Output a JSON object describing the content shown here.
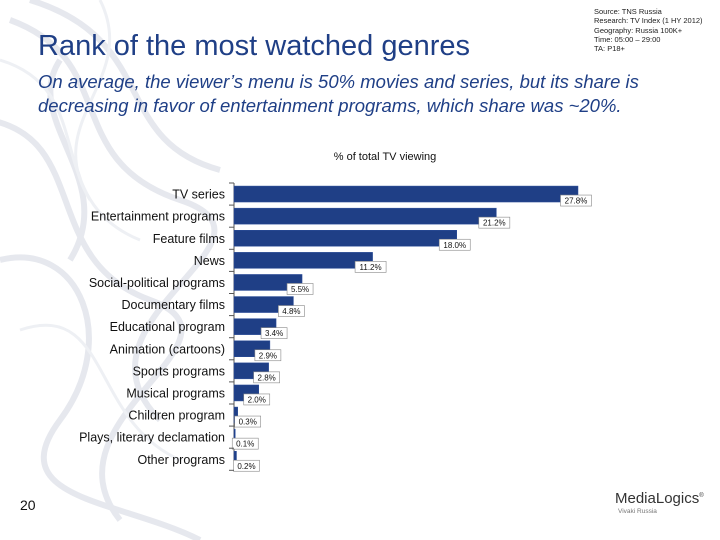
{
  "title": "Rank of the most watched genres",
  "subtitle": "On average, the viewer’s menu is 50% movies and series, but its share is decreasing in favor of entertainment programs, which share was ~20%.",
  "source_lines": [
    "Source: TNS Russia",
    "Research: TV Index (1 HY 2012)",
    "Geography: Russia 100K+",
    "Time: 05:00 – 29:00",
    "TA: P18+"
  ],
  "page_number": "20",
  "logo": {
    "name": "MediaLogics",
    "tm": "®",
    "tagline": "Vivaki Russia"
  },
  "colors": {
    "title": "#1f3f86",
    "bar": "#1f3f86",
    "bar_edge": "#2d4f9b"
  },
  "chart_data": {
    "type": "bar",
    "orientation": "horizontal",
    "title": "% of total TV viewing",
    "xlabel": "",
    "ylabel": "",
    "xlim": [
      0,
      27.8
    ],
    "grid": false,
    "legend": "none",
    "categories": [
      "TV series",
      "Entertainment programs",
      "Feature films",
      "News",
      "Social-political programs",
      "Documentary films",
      "Educational program",
      "Animation (cartoons)",
      "Sports programs",
      "Musical programs",
      "Children program",
      "Plays, literary declamation",
      "Other programs"
    ],
    "values": [
      27.8,
      21.2,
      18.0,
      11.2,
      5.5,
      4.8,
      3.4,
      2.9,
      2.8,
      2.0,
      0.3,
      0.1,
      0.2
    ],
    "value_labels": [
      "27.8%",
      "21.2%",
      "18.0%",
      "11.2%",
      "5.5%",
      "4.8%",
      "3.4%",
      "2.9%",
      "2.8%",
      "2.0%",
      "0.3%",
      "0.1%",
      "0.2%"
    ]
  }
}
